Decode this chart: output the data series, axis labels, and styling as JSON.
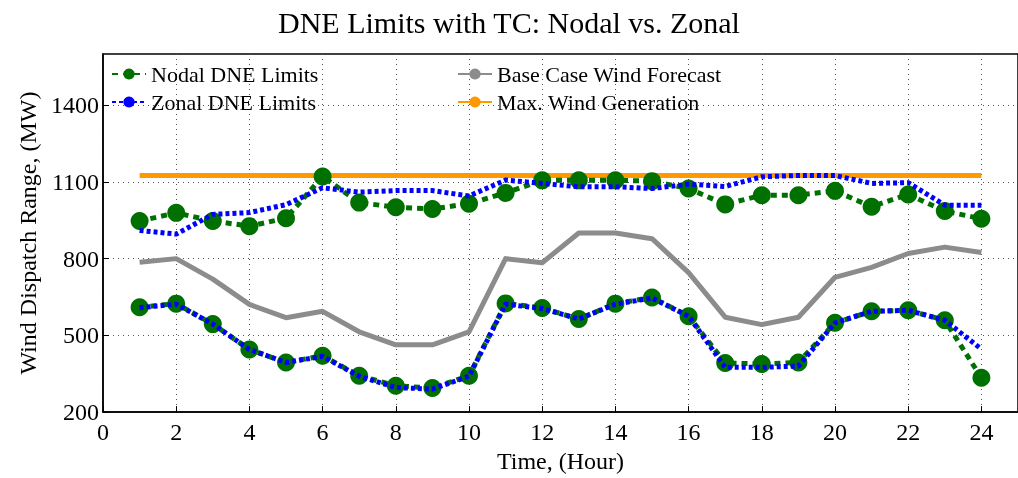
{
  "chart_data": {
    "type": "line",
    "title": "DNE Limits with TC: Nodal vs. Zonal",
    "xlabel": "Time, (Hour)",
    "ylabel": "Wind Dispatch Range, (MW)",
    "x": [
      1,
      2,
      3,
      4,
      5,
      6,
      7,
      8,
      9,
      10,
      11,
      12,
      13,
      14,
      15,
      16,
      17,
      18,
      19,
      20,
      21,
      22,
      23,
      24
    ],
    "xlim": [
      0,
      25
    ],
    "xticks": [
      0,
      2,
      4,
      6,
      8,
      10,
      12,
      14,
      16,
      18,
      20,
      22,
      24
    ],
    "ylim": [
      200,
      1600
    ],
    "yticks": [
      200,
      500,
      800,
      1100,
      1400
    ],
    "grid": true,
    "legend": "top left",
    "series": [
      {
        "name": "Nodal DNE Limits",
        "color": "#007000",
        "marker": "circle",
        "line_style": "dashed",
        "values": [
          947,
          979,
          947,
          927,
          958,
          1121,
          1019,
          1001,
          994,
          1015,
          1057,
          1106,
          1106,
          1106,
          1103,
          1074,
          1012,
          1048,
          1048,
          1065,
          1003,
          1051,
          986,
          956
        ]
      },
      {
        "color": "#007000",
        "marker": "circle",
        "line_style": "dashed",
        "values": [
          610,
          624,
          544,
          445,
          394,
          420,
          342,
          303,
          294,
          342,
          625,
          607,
          564,
          624,
          648,
          575,
          392,
          388,
          394,
          549,
          594,
          598,
          559,
          334
        ]
      },
      {
        "name": "Base Case Wind Forecast",
        "color": "#8c8c8c",
        "marker": "none",
        "line_style": "solid",
        "values": [
          786,
          800,
          720,
          621,
          569,
          594,
          514,
          463,
          463,
          514,
          800,
          784,
          900,
          900,
          878,
          745,
          571,
          542,
          571,
          727,
          766,
          820,
          845,
          824
        ]
      },
      {
        "name": "Zonal DNE Limits",
        "color": "#0000ff",
        "marker": "none",
        "line_style": "dotted",
        "values": [
          910,
          896,
          973,
          980,
          1011,
          1077,
          1060,
          1066,
          1066,
          1045,
          1107,
          1094,
          1081,
          1081,
          1074,
          1091,
          1082,
          1120,
          1125,
          1125,
          1094,
          1097,
          1009,
          1009
        ]
      },
      {
        "color": "#0000ff",
        "marker": "none",
        "line_style": "dotted",
        "values": [
          608,
          622,
          544,
          445,
          394,
          418,
          340,
          296,
          290,
          340,
          622,
          605,
          564,
          622,
          646,
          575,
          375,
          375,
          380,
          549,
          594,
          598,
          559,
          446
        ]
      },
      {
        "name": "Max. Wind Generation",
        "color": "#ff9900",
        "marker": "none",
        "line_style": "solid",
        "x": [
          1,
          24
        ],
        "values": [
          1125,
          1125
        ]
      }
    ]
  }
}
